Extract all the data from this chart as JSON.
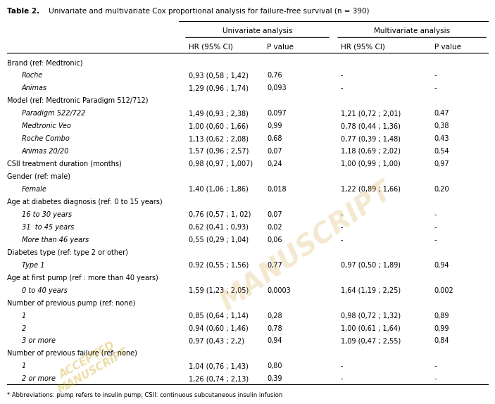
{
  "title": "Table 2. Univariate and multivariate Cox proportional analysis for failure-free survival (n = 390)",
  "col_headers_top": [
    "",
    "Univariate analysis",
    "",
    "Multivariate analysis",
    ""
  ],
  "col_headers_sub": [
    "",
    "HR (95% CI)",
    "P value",
    "HR (95% CI)",
    "P value"
  ],
  "rows": [
    {
      "label": "Brand (ref: Medtronic)",
      "indent": false,
      "italic": false,
      "uni_hr": "",
      "uni_p": "",
      "multi_hr": "",
      "multi_p": ""
    },
    {
      "label": "Roche",
      "indent": true,
      "italic": true,
      "uni_hr": "0,93 (0,58 ; 1,42)",
      "uni_p": "0,76",
      "multi_hr": "-",
      "multi_p": "-"
    },
    {
      "label": "Animas",
      "indent": true,
      "italic": true,
      "uni_hr": "1,29 (0,96 ; 1,74)",
      "uni_p": "0,093",
      "multi_hr": "-",
      "multi_p": "-"
    },
    {
      "label": "Model (ref: Medtronic Paradigm 512/712)",
      "indent": false,
      "italic": false,
      "uni_hr": "",
      "uni_p": "",
      "multi_hr": "",
      "multi_p": ""
    },
    {
      "label": "Paradigm 522/722",
      "indent": true,
      "italic": true,
      "uni_hr": "1,49 (0,93 ; 2,38)",
      "uni_p": "0,097",
      "multi_hr": "1,21 (0,72 ; 2,01)",
      "multi_p": "0,47"
    },
    {
      "label": "Medtronic Veo",
      "indent": true,
      "italic": true,
      "uni_hr": "1,00 (0,60 ; 1,66)",
      "uni_p": "0,99",
      "multi_hr": "0,78 (0,44 ; 1,36)",
      "multi_p": "0,38"
    },
    {
      "label": "Roche Combo",
      "indent": true,
      "italic": true,
      "uni_hr": "1,13 (0,62 ; 2,08)",
      "uni_p": "0,68",
      "multi_hr": "0,77 (0,39 ; 1,48)",
      "multi_p": "0,43"
    },
    {
      "label": "Animas 20/20",
      "indent": true,
      "italic": true,
      "uni_hr": "1,57 (0,96 ; 2,57)",
      "uni_p": "0,07",
      "multi_hr": "1,18 (0,69 ; 2,02)",
      "multi_p": "0,54"
    },
    {
      "label": "CSII treatment duration (months)",
      "indent": false,
      "italic": false,
      "uni_hr": "0,98 (0,97 ; 1,007)",
      "uni_p": "0,24",
      "multi_hr": "1,00 (0,99 ; 1,00)",
      "multi_p": "0,97"
    },
    {
      "label": "Gender (ref: male)",
      "indent": false,
      "italic": false,
      "uni_hr": "",
      "uni_p": "",
      "multi_hr": "",
      "multi_p": ""
    },
    {
      "label": "Female",
      "indent": true,
      "italic": true,
      "uni_hr": "1,40 (1,06 ; 1,86)",
      "uni_p": "0,018",
      "multi_hr": "1,22 (0,89 ; 1,66)",
      "multi_p": "0,20"
    },
    {
      "label": "Age at diabetes diagnosis (ref: 0 to 15 years)",
      "indent": false,
      "italic": false,
      "uni_hr": "",
      "uni_p": "",
      "multi_hr": "",
      "multi_p": ""
    },
    {
      "label": "16 to 30 years",
      "indent": true,
      "italic": true,
      "uni_hr": "0,76 (0,57 ; 1, 02)",
      "uni_p": "0,07",
      "multi_hr": "-",
      "multi_p": "-"
    },
    {
      "label": "31  to 45 years",
      "indent": true,
      "italic": true,
      "uni_hr": "0,62 (0,41 ; 0,93)",
      "uni_p": "0,02",
      "multi_hr": "-",
      "multi_p": "-"
    },
    {
      "label": "More than 46 years",
      "indent": true,
      "italic": true,
      "uni_hr": "0,55 (0,29 ; 1,04)",
      "uni_p": "0,06",
      "multi_hr": "-",
      "multi_p": "-"
    },
    {
      "label": "Diabetes type (ref: type 2 or other)",
      "indent": false,
      "italic": false,
      "uni_hr": "",
      "uni_p": "",
      "multi_hr": "",
      "multi_p": ""
    },
    {
      "label": "Type 1",
      "indent": true,
      "italic": true,
      "uni_hr": "0,92 (0,55 ; 1,56)",
      "uni_p": "0,77",
      "multi_hr": "0,97 (0,50 ; 1,89)",
      "multi_p": "0,94"
    },
    {
      "label": "Age at first pump (ref : more than 40 years)",
      "indent": false,
      "italic": false,
      "uni_hr": "",
      "uni_p": "",
      "multi_hr": "",
      "multi_p": ""
    },
    {
      "label": "0 to 40 years",
      "indent": true,
      "italic": true,
      "uni_hr": "1,59 (1,23 ; 2,05)",
      "uni_p": "0,0003",
      "multi_hr": "1,64 (1,19 ; 2,25)",
      "multi_p": "0,002"
    },
    {
      "label": "Number of previous pump (ref: none)",
      "indent": false,
      "italic": false,
      "uni_hr": "",
      "uni_p": "",
      "multi_hr": "",
      "multi_p": ""
    },
    {
      "label": "1",
      "indent": true,
      "italic": true,
      "uni_hr": "0,85 (0,64 ; 1,14)",
      "uni_p": "0,28",
      "multi_hr": "0,98 (0,72 ; 1,32)",
      "multi_p": "0,89"
    },
    {
      "label": "2",
      "indent": true,
      "italic": true,
      "uni_hr": "0,94 (0,60 ; 1,46)",
      "uni_p": "0,78",
      "multi_hr": "1,00 (0,61 ; 1,64)",
      "multi_p": "0,99"
    },
    {
      "label": "3 or more",
      "indent": true,
      "italic": true,
      "uni_hr": "0,97 (0,43 ; 2,2)",
      "uni_p": "0,94",
      "multi_hr": "1,09 (0,47 ; 2,55)",
      "multi_p": "0,84"
    },
    {
      "label": "Number of previous failure (ref: none)",
      "indent": false,
      "italic": false,
      "uni_hr": "",
      "uni_p": "",
      "multi_hr": "",
      "multi_p": ""
    },
    {
      "label": "1",
      "indent": true,
      "italic": true,
      "uni_hr": "1,04 (0,76 ; 1,43)",
      "uni_p": "0,80",
      "multi_hr": "-",
      "multi_p": "-"
    },
    {
      "label": "2 or more",
      "indent": true,
      "italic": true,
      "uni_hr": "1,26 (0,74 ; 2,13)",
      "uni_p": "0,39",
      "multi_hr": "-",
      "multi_p": "-"
    }
  ],
  "footnote": "* Abbreviations: pump refers to insulin pump; CSII: continuous subcutaneous insulin infusion",
  "bg_color": "#ffffff",
  "text_color": "#000000",
  "header_line_color": "#000000",
  "watermark_text": "MANUSCRIPT",
  "watermark_color": "#d4a843",
  "watermark_alpha": 0.25
}
